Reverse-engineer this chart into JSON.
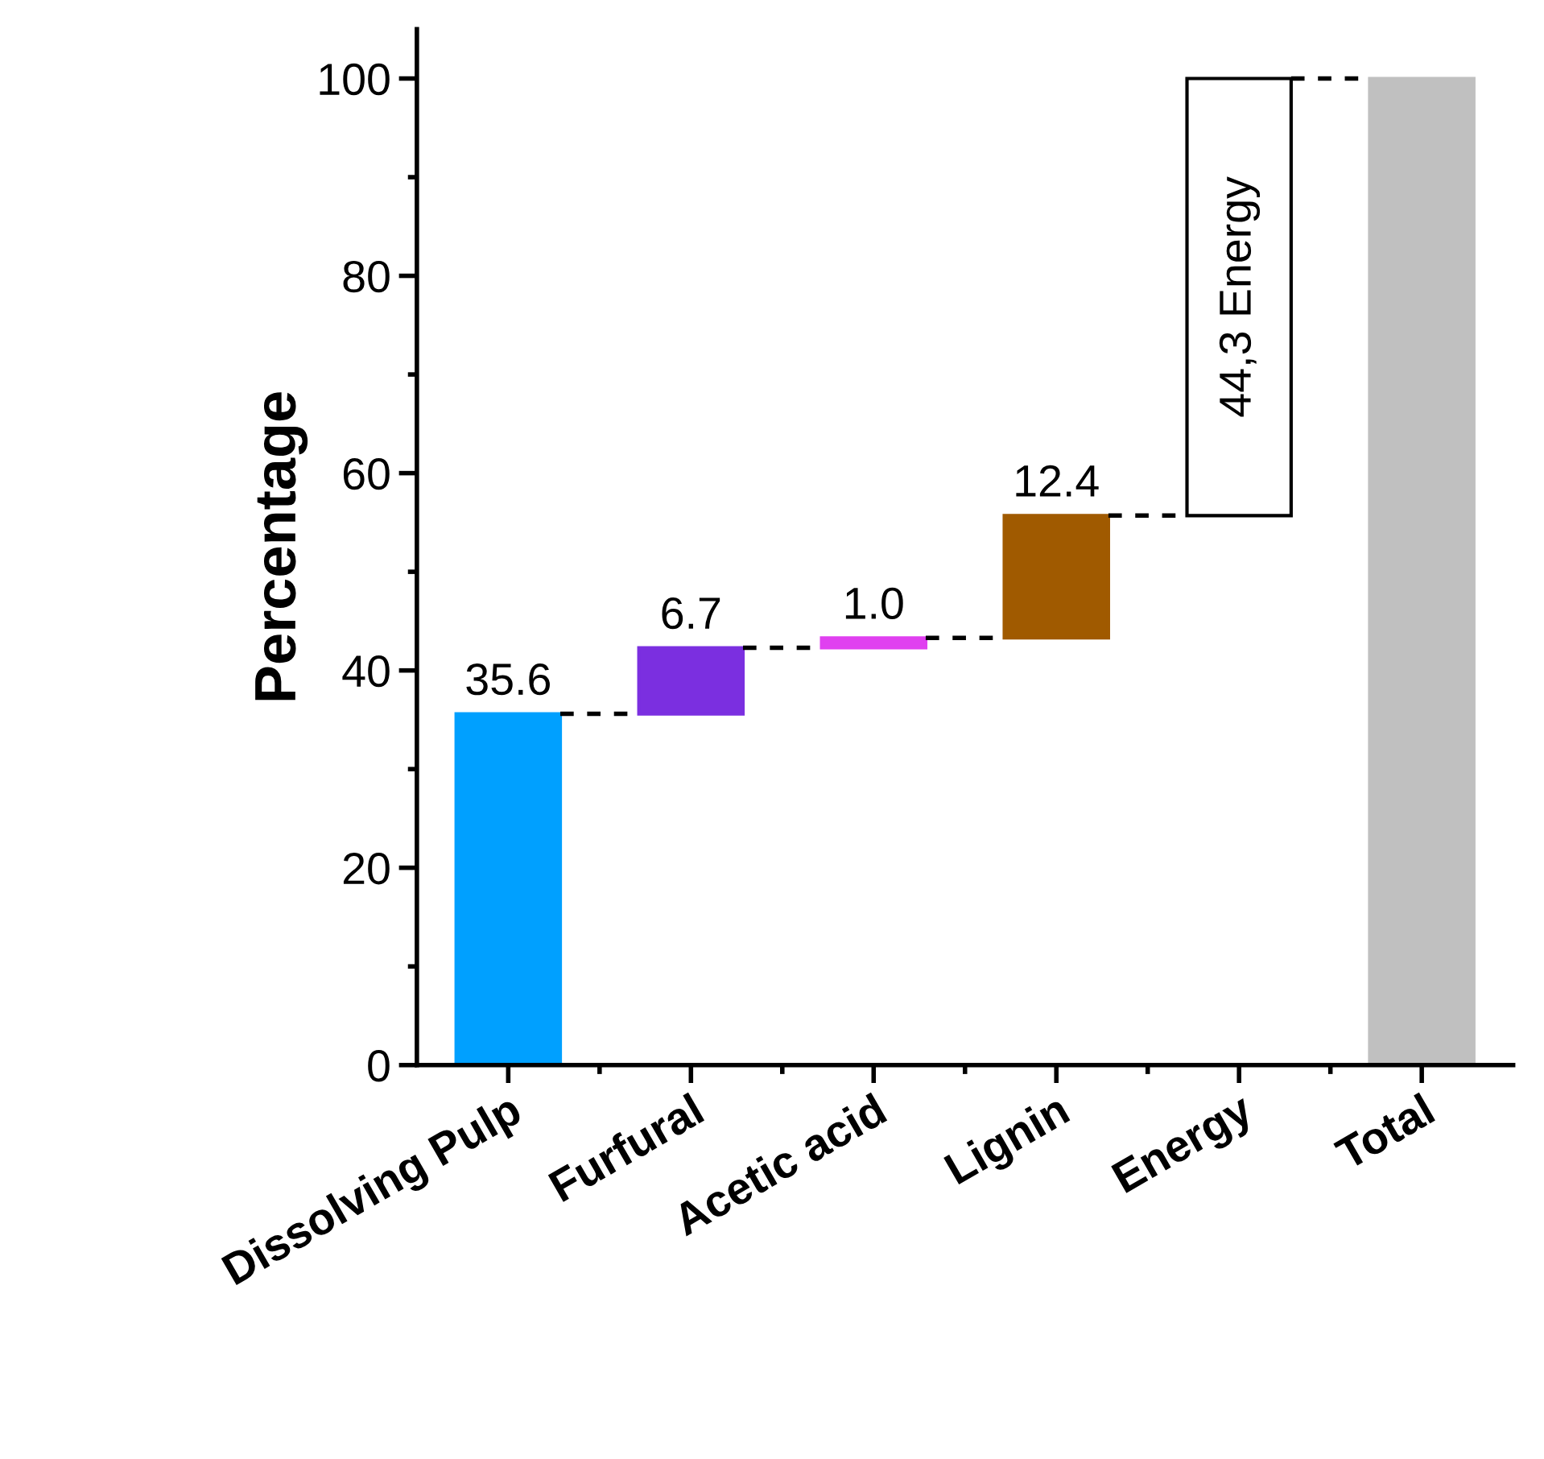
{
  "chart_data": {
    "type": "bar",
    "ylabel": "Percentage",
    "categories": [
      "Dissolving Pulp",
      "Furfural",
      "Acetic acid",
      "Lignin",
      "Energy",
      "Total"
    ],
    "values": [
      35.6,
      6.7,
      1.0,
      12.4,
      44.3,
      100
    ],
    "base": [
      0,
      35.6,
      42.3,
      43.3,
      55.7,
      0
    ],
    "colors": [
      "#00a0ff",
      "#7b2fe0",
      "#e040f0",
      "#a05a00",
      "#ffffff",
      "#c0c0c0"
    ],
    "value_labels": [
      "35.6",
      "6.7",
      "1.0",
      "12.4",
      "44,3 Energy",
      null
    ],
    "ylim": [
      0,
      105
    ],
    "yticks": [
      0,
      20,
      40,
      60,
      80,
      100
    ],
    "grid": false
  }
}
